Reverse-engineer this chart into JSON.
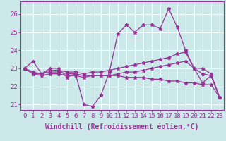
{
  "xlabel": "Windchill (Refroidissement éolien,°C)",
  "background_color": "#cce8e8",
  "line_color": "#993399",
  "grid_color": "#ffffff",
  "x_values": [
    0,
    1,
    2,
    3,
    4,
    5,
    6,
    7,
    8,
    9,
    10,
    11,
    12,
    13,
    14,
    15,
    16,
    17,
    18,
    19,
    20,
    21,
    22,
    23
  ],
  "series1": [
    23.0,
    23.4,
    22.7,
    23.0,
    23.0,
    22.5,
    22.7,
    21.0,
    20.9,
    21.5,
    22.8,
    24.9,
    25.4,
    25.0,
    25.4,
    25.4,
    25.2,
    26.3,
    25.3,
    24.0,
    23.0,
    22.2,
    22.6,
    21.4
  ],
  "series2": [
    23.0,
    22.7,
    22.7,
    22.9,
    22.9,
    22.8,
    22.8,
    22.7,
    22.8,
    22.8,
    22.9,
    23.0,
    23.1,
    23.2,
    23.3,
    23.4,
    23.5,
    23.6,
    23.8,
    23.9,
    23.0,
    23.0,
    22.7,
    21.4
  ],
  "series3": [
    23.0,
    22.8,
    22.7,
    22.8,
    22.8,
    22.7,
    22.7,
    22.6,
    22.6,
    22.6,
    22.6,
    22.6,
    22.5,
    22.5,
    22.5,
    22.4,
    22.4,
    22.3,
    22.3,
    22.2,
    22.2,
    22.1,
    22.1,
    21.4
  ],
  "series4": [
    23.0,
    22.7,
    22.6,
    22.7,
    22.7,
    22.6,
    22.6,
    22.5,
    22.6,
    22.6,
    22.6,
    22.7,
    22.8,
    22.8,
    22.9,
    23.0,
    23.1,
    23.2,
    23.3,
    23.4,
    23.0,
    22.7,
    22.6,
    21.4
  ],
  "ylim": [
    20.7,
    26.7
  ],
  "yticks": [
    21,
    22,
    23,
    24,
    25,
    26
  ],
  "xticks": [
    0,
    1,
    2,
    3,
    4,
    5,
    6,
    7,
    8,
    9,
    10,
    11,
    12,
    13,
    14,
    15,
    16,
    17,
    18,
    19,
    20,
    21,
    22,
    23
  ],
  "fontsize_ticks": 6.5,
  "fontsize_xlabel": 7.0,
  "linewidth": 0.9,
  "markersize": 3.5
}
